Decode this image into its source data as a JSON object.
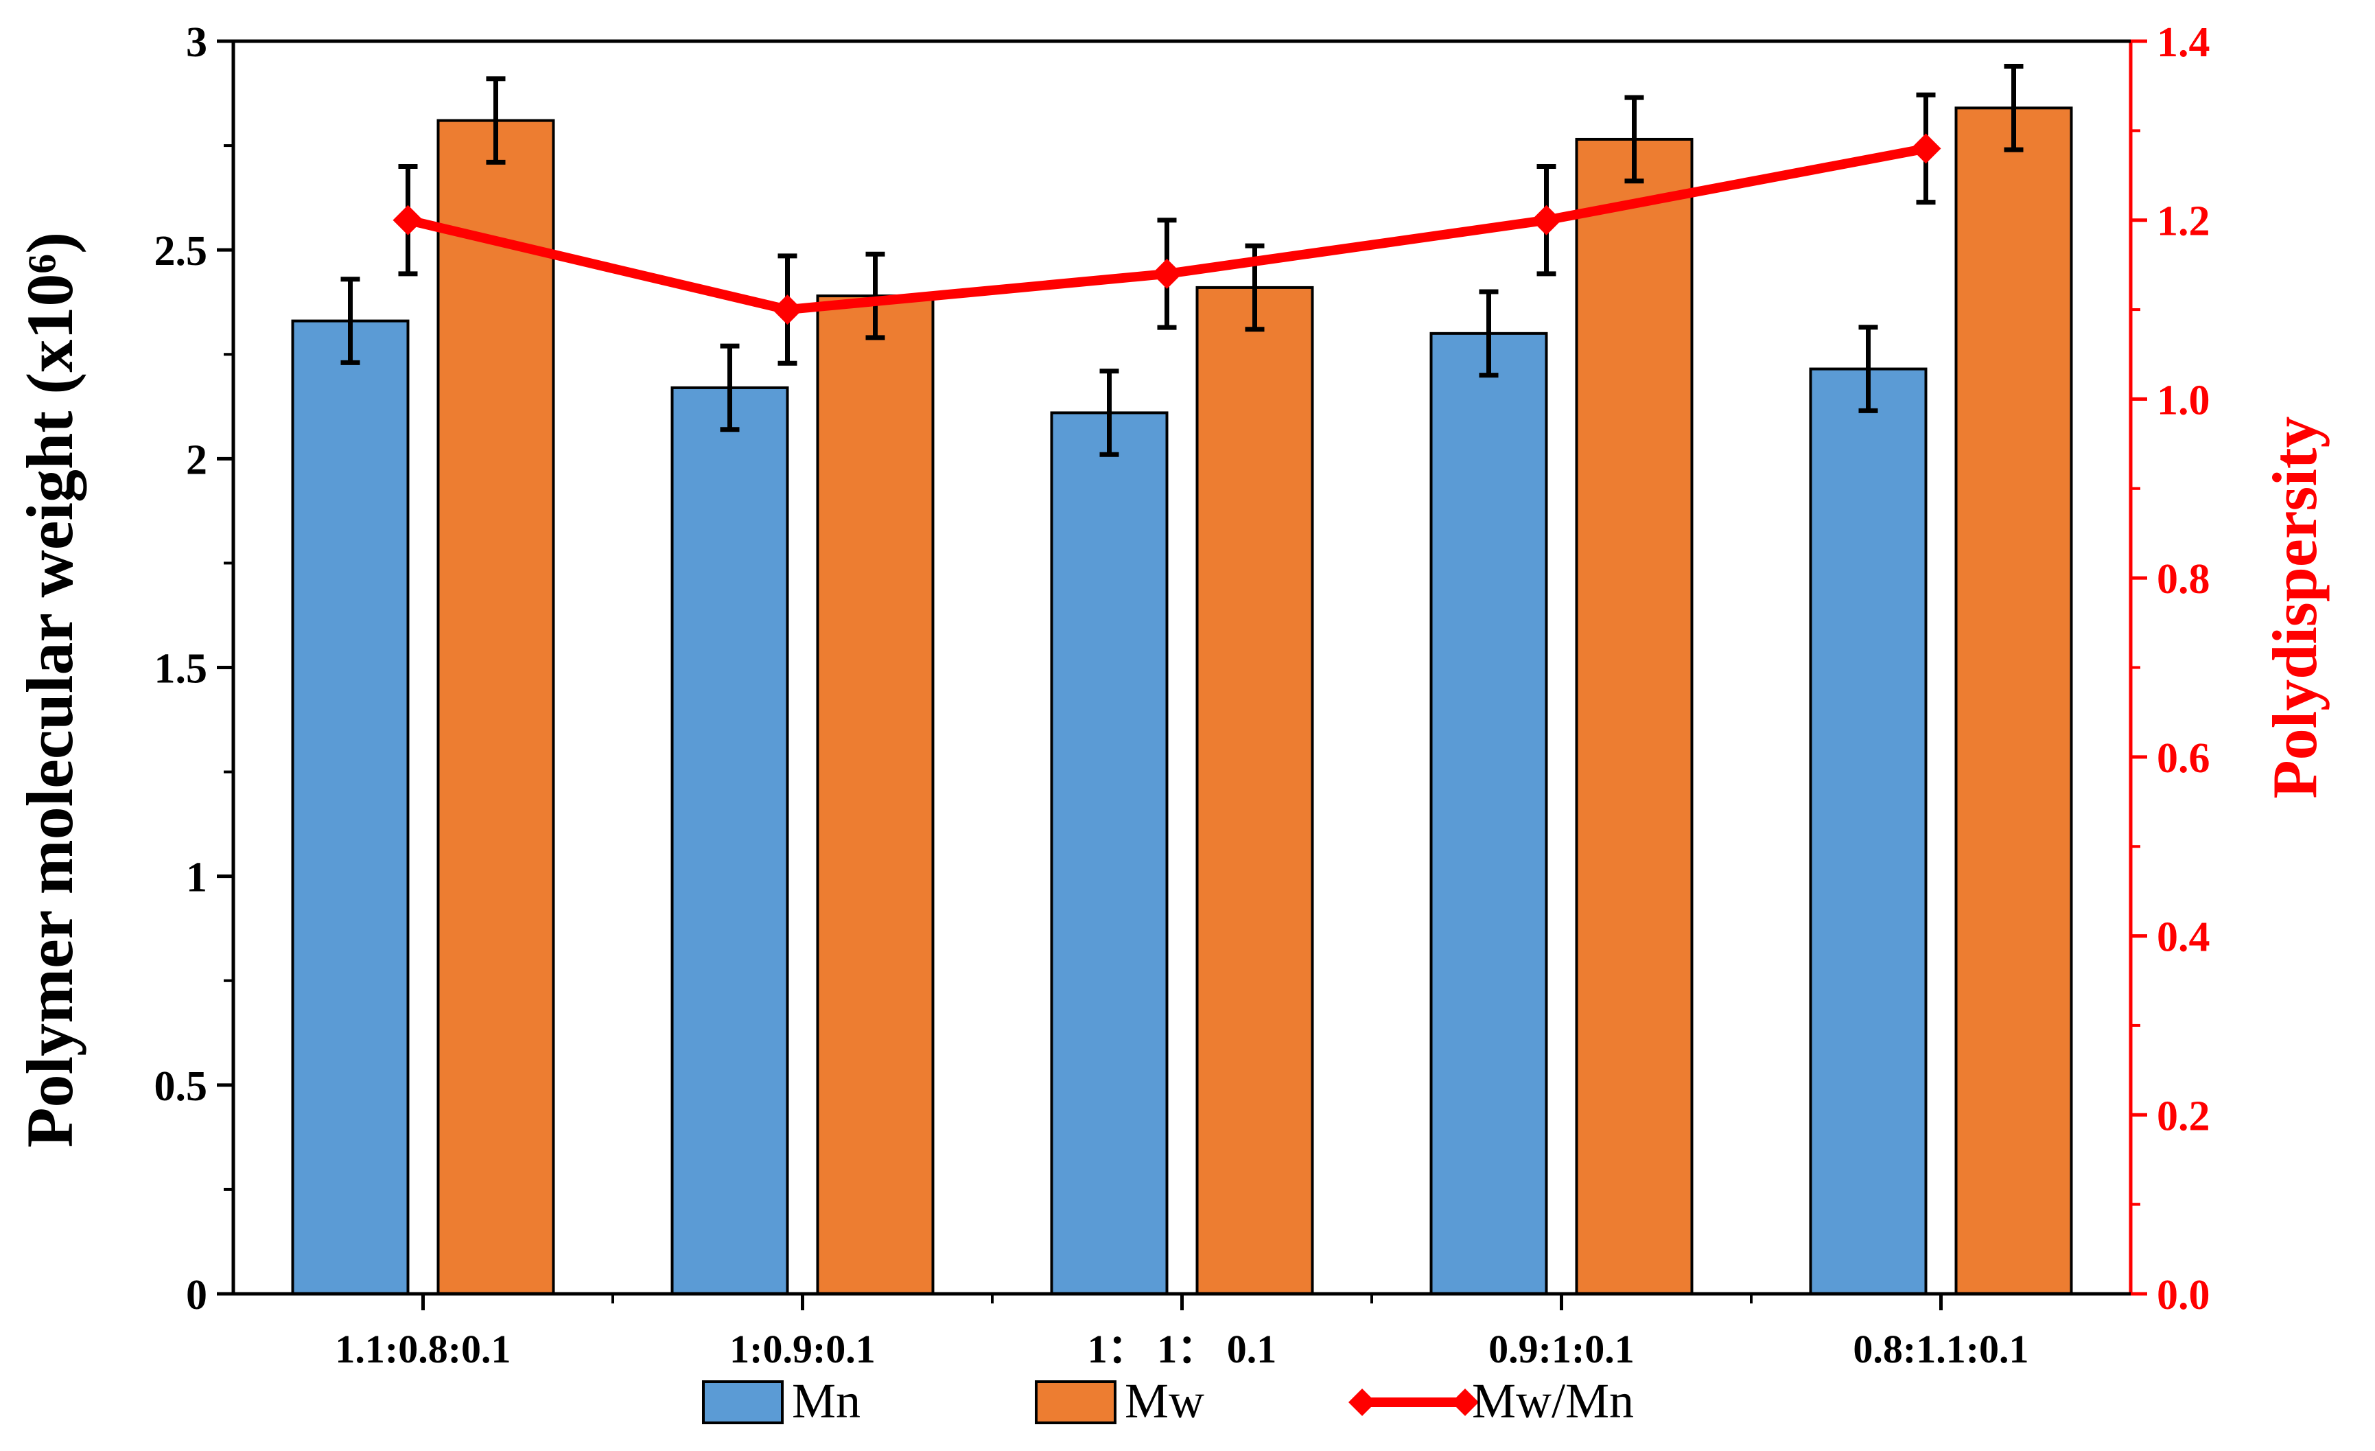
{
  "chart_data": {
    "type": "bar",
    "categories": [
      "1.1:0.8:0.1",
      "1:0.9:0.1",
      "1： 1： 0.1",
      "0.9:1:0.1",
      "0.8:1.1:0.1"
    ],
    "series": [
      {
        "name": "Mn",
        "axis": "left",
        "kind": "bar",
        "color": "#5B9BD5",
        "values": [
          2.33,
          2.17,
          2.11,
          2.3,
          2.215
        ],
        "errors": [
          0.1,
          0.1,
          0.1,
          0.1,
          0.1
        ]
      },
      {
        "name": "Mw",
        "axis": "left",
        "kind": "bar",
        "color": "#ED7D31",
        "values": [
          2.81,
          2.39,
          2.41,
          2.765,
          2.84
        ],
        "errors": [
          0.1,
          0.1,
          0.1,
          0.1,
          0.1
        ]
      },
      {
        "name": "Mw/Mn",
        "axis": "right",
        "kind": "line",
        "color": "#FF0000",
        "values": [
          1.2,
          1.1,
          1.14,
          1.2,
          1.28
        ],
        "errors": [
          0.06,
          0.06,
          0.06,
          0.06,
          0.06
        ]
      }
    ],
    "ylabel": "Polymer molecular weight (x10⁶)",
    "y2label": "Polydispersity",
    "ylim": [
      0,
      3
    ],
    "y2lim": [
      0,
      1.4
    ],
    "yticks": [
      "0",
      "0.5",
      "1",
      "1.5",
      "2",
      "2.5",
      "3"
    ],
    "y2ticks": [
      "0.0",
      "0.2",
      "0.4",
      "0.6",
      "0.8",
      "1.0",
      "1.2",
      "1.4"
    ],
    "legend": {
      "position": "bottom-center",
      "entries": [
        "Mn",
        "Mw",
        "Mw/Mn"
      ]
    }
  }
}
